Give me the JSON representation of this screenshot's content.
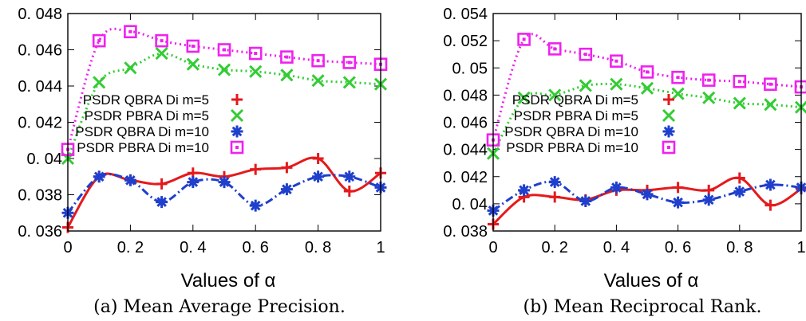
{
  "chart_data": [
    {
      "type": "line",
      "caption": "(a) Mean Average Precision.",
      "xlabel": "Values of α",
      "ylabel": "",
      "x": [
        0,
        0.1,
        0.2,
        0.3,
        0.4,
        0.5,
        0.6,
        0.7,
        0.8,
        0.9,
        1
      ],
      "xticks": [
        "0",
        "0. 2",
        "0. 4",
        "0. 6",
        "0. 8",
        "1"
      ],
      "xtick_values": [
        0,
        0.2,
        0.4,
        0.6,
        0.8,
        1
      ],
      "yticks": [
        "0. 036",
        "0. 038",
        "0. 04",
        "0. 042",
        "0. 044",
        "0. 046",
        "0. 048"
      ],
      "ytick_values": [
        0.036,
        0.038,
        0.04,
        0.042,
        0.044,
        0.046,
        0.048
      ],
      "xlim": [
        0,
        1
      ],
      "ylim": [
        0.036,
        0.048
      ],
      "legend_position": "middle",
      "series": [
        {
          "name": "PSDR QBRA Di m=5",
          "color": "#e41a1c",
          "marker": "plus",
          "style": "solid",
          "values": [
            0.0362,
            0.039,
            0.0388,
            0.0386,
            0.0392,
            0.039,
            0.0394,
            0.0395,
            0.04,
            0.0382,
            0.0392
          ]
        },
        {
          "name": "PSDR PBRA Di m=5",
          "color": "#33cc33",
          "marker": "cross",
          "style": "dotted",
          "values": [
            0.04,
            0.0442,
            0.045,
            0.0458,
            0.0452,
            0.0449,
            0.0448,
            0.0446,
            0.0443,
            0.0442,
            0.0441
          ]
        },
        {
          "name": "PSDR QBRA Di m=10",
          "color": "#1f3fcc",
          "marker": "star",
          "style": "dashdot",
          "values": [
            0.037,
            0.039,
            0.0388,
            0.0376,
            0.0387,
            0.0387,
            0.0374,
            0.0383,
            0.039,
            0.039,
            0.0384
          ]
        },
        {
          "name": "PSDR PBRA Di m=10",
          "color": "#ee22ee",
          "marker": "square",
          "style": "dotted",
          "values": [
            0.0405,
            0.0465,
            0.047,
            0.0465,
            0.0462,
            0.046,
            0.0458,
            0.0456,
            0.0454,
            0.0453,
            0.0452
          ]
        }
      ]
    },
    {
      "type": "line",
      "caption": "(b) Mean Reciprocal Rank.",
      "xlabel": "Values of α",
      "ylabel": "",
      "x": [
        0,
        0.1,
        0.2,
        0.3,
        0.4,
        0.5,
        0.6,
        0.7,
        0.8,
        0.9,
        1
      ],
      "xticks": [
        "0",
        "0. 2",
        "0. 4",
        "0. 6",
        "0. 8",
        "1"
      ],
      "xtick_values": [
        0,
        0.2,
        0.4,
        0.6,
        0.8,
        1
      ],
      "yticks": [
        "0. 038",
        "0. 04",
        "0. 042",
        "0. 044",
        "0. 046",
        "0. 048",
        "0. 05",
        "0. 052",
        "0. 054"
      ],
      "ytick_values": [
        0.038,
        0.04,
        0.042,
        0.044,
        0.046,
        0.048,
        0.05,
        0.052,
        0.054
      ],
      "xlim": [
        0,
        1
      ],
      "ylim": [
        0.038,
        0.054
      ],
      "legend_position": "middle-right",
      "series": [
        {
          "name": "PSDR QBRA Di m=5",
          "color": "#e41a1c",
          "marker": "plus",
          "style": "solid",
          "values": [
            0.0385,
            0.0405,
            0.0405,
            0.0403,
            0.041,
            0.041,
            0.0412,
            0.041,
            0.0419,
            0.0399,
            0.0411
          ]
        },
        {
          "name": "PSDR PBRA Di m=5",
          "color": "#33cc33",
          "marker": "cross",
          "style": "dotted",
          "values": [
            0.0437,
            0.0478,
            0.048,
            0.0487,
            0.0488,
            0.0485,
            0.0481,
            0.0478,
            0.0474,
            0.0473,
            0.0471
          ]
        },
        {
          "name": "PSDR QBRA Di m=10",
          "color": "#1f3fcc",
          "marker": "star",
          "style": "dashdot",
          "values": [
            0.0395,
            0.041,
            0.0416,
            0.0402,
            0.0412,
            0.0407,
            0.0401,
            0.0403,
            0.0409,
            0.0414,
            0.0412
          ]
        },
        {
          "name": "PSDR PBRA Di m=10",
          "color": "#ee22ee",
          "marker": "square",
          "style": "dotted",
          "values": [
            0.0447,
            0.0521,
            0.0514,
            0.051,
            0.0505,
            0.0497,
            0.0493,
            0.0491,
            0.049,
            0.0488,
            0.0486
          ]
        }
      ]
    }
  ]
}
